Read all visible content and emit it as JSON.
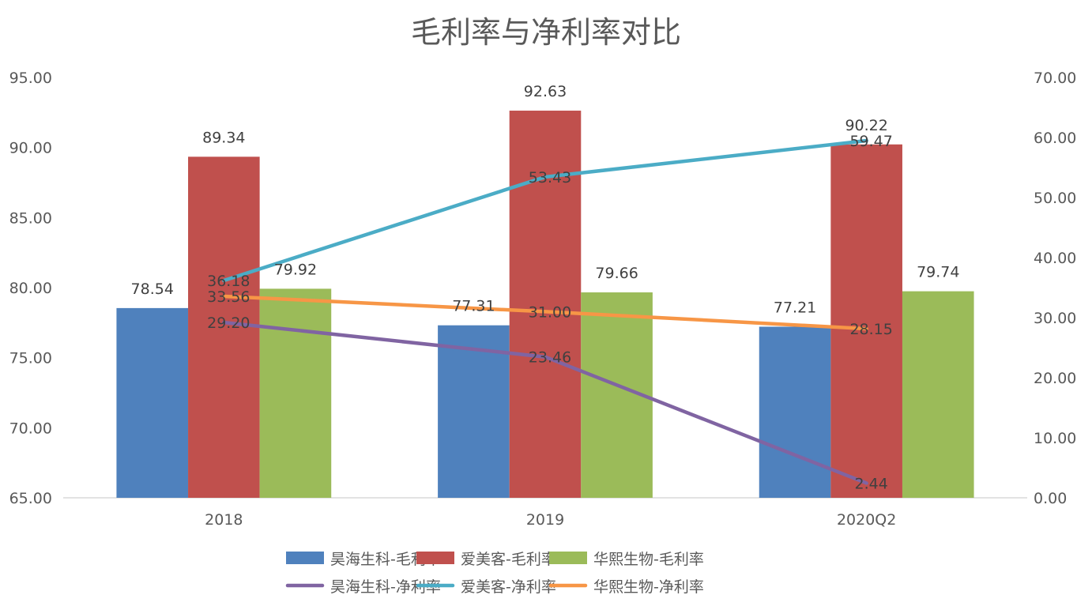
{
  "chart_data": {
    "type": "bar+line",
    "title": "毛利率与净利率对比",
    "categories": [
      "2018",
      "2019",
      "2020Q2"
    ],
    "left_axis": {
      "min": 65,
      "max": 95,
      "step": 5,
      "ticks": [
        "65.00",
        "70.00",
        "75.00",
        "80.00",
        "85.00",
        "90.00",
        "95.00"
      ]
    },
    "right_axis": {
      "min": 0,
      "max": 70,
      "step": 10,
      "ticks": [
        "0.00",
        "10.00",
        "20.00",
        "30.00",
        "40.00",
        "50.00",
        "60.00",
        "70.00"
      ]
    },
    "bar_series": [
      {
        "name": "昊海生科-毛利率",
        "color": "#4F81BD",
        "values": [
          78.54,
          77.31,
          77.21
        ],
        "labels": [
          "78.54",
          "77.31",
          "77.21"
        ]
      },
      {
        "name": "爱美客-毛利率",
        "color": "#C0504D",
        "values": [
          89.34,
          92.63,
          90.22
        ],
        "labels": [
          "89.34",
          "92.63",
          "90.22"
        ]
      },
      {
        "name": "华熙生物-毛利率",
        "color": "#9BBB59",
        "values": [
          79.92,
          79.66,
          79.74
        ],
        "labels": [
          "79.92",
          "79.66",
          "79.74"
        ]
      }
    ],
    "line_series": [
      {
        "name": "昊海生科-净利率",
        "color": "#8064A2",
        "values": [
          29.2,
          23.46,
          2.44
        ],
        "labels": [
          "29.20",
          "23.46",
          "2.44"
        ]
      },
      {
        "name": "爱美客-净利率",
        "color": "#4BACC6",
        "values": [
          36.18,
          53.43,
          59.47
        ],
        "labels": [
          "36.18",
          "53.43",
          "59.47"
        ]
      },
      {
        "name": "华熙生物-净利率",
        "color": "#F79646",
        "values": [
          33.56,
          31.0,
          28.15
        ],
        "labels": [
          "33.56",
          "31.00",
          "28.15"
        ]
      }
    ],
    "grid": false,
    "legend_position": "bottom"
  }
}
